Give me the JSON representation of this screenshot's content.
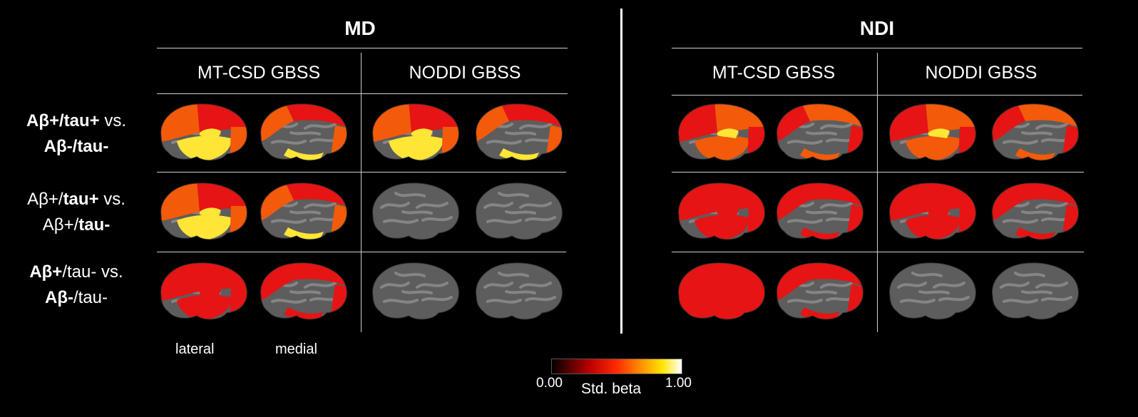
{
  "panels": [
    {
      "title": "MD",
      "columns": [
        "MT-CSD GBSS",
        "NODDI GBSS"
      ]
    },
    {
      "title": "NDI",
      "columns": [
        "MT-CSD GBSS",
        "NODDI GBSS"
      ]
    }
  ],
  "rows": [
    {
      "line1": [
        {
          "t": "Aβ+/tau+",
          "b": true
        },
        {
          "t": " vs.",
          "b": false
        }
      ],
      "line2": [
        {
          "t": "Aβ-/tau-",
          "b": true
        }
      ]
    },
    {
      "line1": [
        {
          "t": "Aβ+/",
          "b": false
        },
        {
          "t": "tau+",
          "b": true
        },
        {
          "t": " vs.",
          "b": false
        }
      ],
      "line2": [
        {
          "t": "Aβ+/",
          "b": false
        },
        {
          "t": "tau-",
          "b": true
        }
      ]
    },
    {
      "line1": [
        {
          "t": "Aβ+",
          "b": true
        },
        {
          "t": "/tau- vs.",
          "b": false
        }
      ],
      "line2": [
        {
          "t": "Aβ-",
          "b": true
        },
        {
          "t": "/tau-",
          "b": false
        }
      ]
    }
  ],
  "views": {
    "lateral": "lateral",
    "medial": "medial"
  },
  "colorbar": {
    "min": "0.00",
    "max": "1.00",
    "title": "Std. beta",
    "stops": [
      "#000000",
      "#e00000",
      "#ff5a00",
      "#ffd000",
      "#ffffff"
    ]
  },
  "colors": {
    "cortex": "#5d5d5d",
    "sulcus": "#858585",
    "red": "#e61414",
    "orange": "#f35a0a",
    "yellow": "#ffe536"
  },
  "brain_maps": [
    [
      "high",
      "high",
      "high",
      "high",
      "mid",
      "mid",
      "mid",
      "mid"
    ],
    [
      "high",
      "high",
      "none",
      "none",
      "low",
      "low",
      "low",
      "low"
    ],
    [
      "low",
      "low",
      "none",
      "none",
      "strong",
      "low",
      "none",
      "none"
    ]
  ]
}
